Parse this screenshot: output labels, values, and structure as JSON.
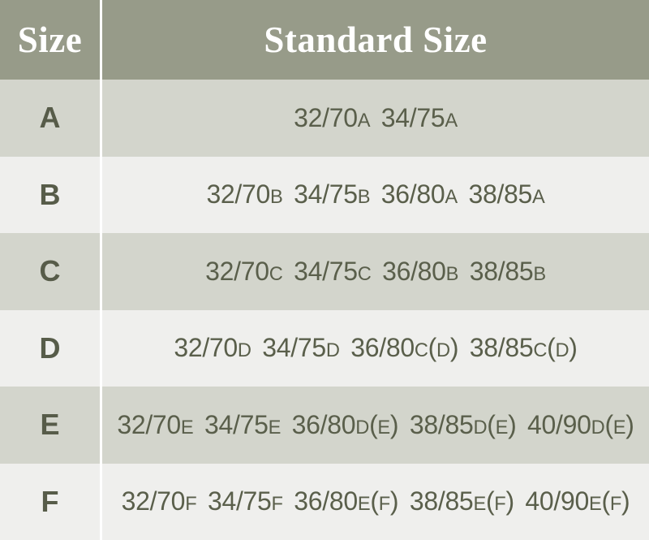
{
  "table": {
    "columns": [
      {
        "label": "Size"
      },
      {
        "label": "Standard Size"
      }
    ],
    "rows": [
      {
        "size": "A",
        "standard": "32/70A 34/75A"
      },
      {
        "size": "B",
        "standard": "32/70B 34/75B 36/80A 38/85A"
      },
      {
        "size": "C",
        "standard": "32/70C 34/75C 36/80B 38/85B"
      },
      {
        "size": "D",
        "standard": "32/70D 34/75D 36/80C(D) 38/85C(D)"
      },
      {
        "size": "E",
        "standard": "32/70E 34/75E 36/80D(E) 38/85D(E) 40/90D(E)"
      },
      {
        "size": "F",
        "standard": "32/70F 34/75F 36/80E(F) 38/85E(F) 40/90E(F)"
      }
    ]
  },
  "colors": {
    "header_background": "#979b89",
    "row_dark_background": "#d3d5cc",
    "row_light_background": "#efefed",
    "divider": "#ffffff",
    "header_text": "#ffffff",
    "cell_text": "#575c49"
  },
  "chart_data": {
    "type": "table",
    "title": "",
    "columns": [
      "Size",
      "Standard Size"
    ],
    "rows": [
      [
        "A",
        "32/70A 34/75A"
      ],
      [
        "B",
        "32/70B 34/75B 36/80A 38/85A"
      ],
      [
        "C",
        "32/70C 34/75C 36/80B 38/85B"
      ],
      [
        "D",
        "32/70D 34/75D 36/80C(D) 38/85C(D)"
      ],
      [
        "E",
        "32/70E 34/75E 36/80D(E) 38/85D(E) 40/90D(E)"
      ],
      [
        "F",
        "32/70F 34/75F 36/80E(F) 38/85E(F) 40/90E(F)"
      ]
    ],
    "layout": {
      "header_position": "top",
      "alternating_rows": true,
      "legend": "none"
    }
  }
}
